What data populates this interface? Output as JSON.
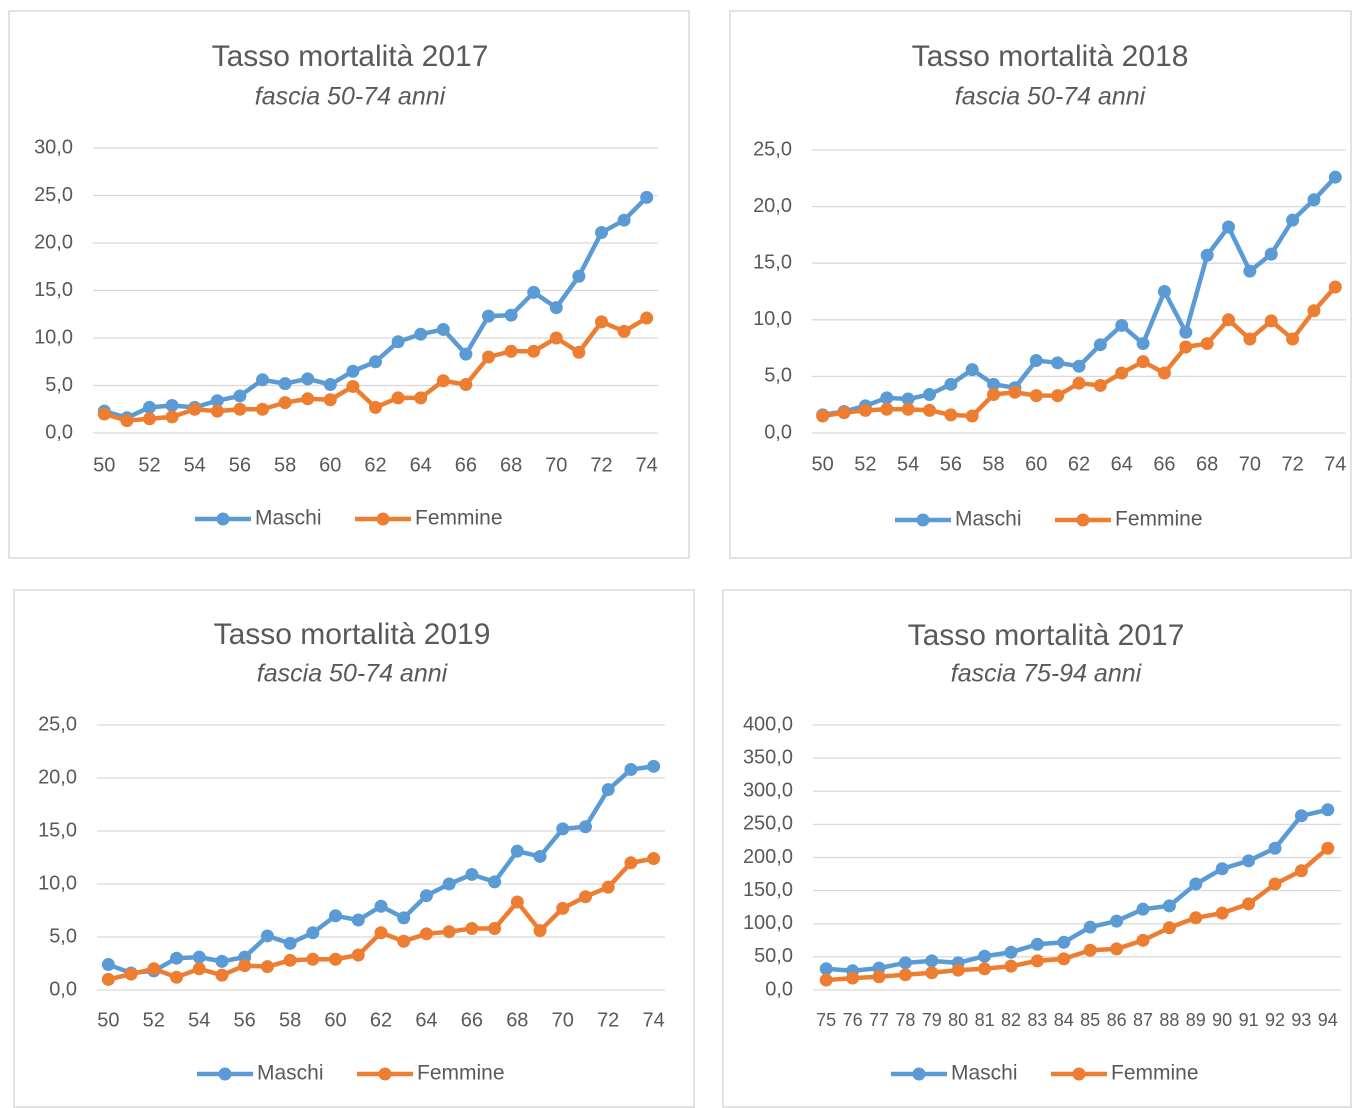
{
  "chart_data": [
    {
      "type": "line",
      "title": "Tasso mortalità 2017",
      "subtitle": "fascia 50-74 anni",
      "categories": [
        "50",
        null,
        "52",
        null,
        "54",
        null,
        "56",
        null,
        "58",
        null,
        "60",
        null,
        "62",
        null,
        "64",
        null,
        "66",
        null,
        "68",
        null,
        "70",
        null,
        "72",
        null,
        "74"
      ],
      "series": [
        {
          "name": "Maschi",
          "color": "#5b9bd5",
          "values": [
            2.3,
            1.6,
            2.7,
            2.9,
            2.7,
            3.4,
            3.9,
            5.6,
            5.2,
            5.7,
            5.1,
            6.5,
            7.5,
            9.6,
            10.4,
            10.9,
            8.3,
            12.3,
            12.4,
            14.8,
            13.2,
            16.5,
            21.1,
            22.4,
            24.8
          ]
        },
        {
          "name": "Femmine",
          "color": "#ed7d31",
          "values": [
            2.0,
            1.3,
            1.5,
            1.7,
            2.5,
            2.3,
            2.5,
            2.5,
            3.2,
            3.6,
            3.5,
            4.9,
            2.7,
            3.7,
            3.7,
            5.5,
            5.1,
            8.0,
            8.6,
            8.6,
            10.0,
            8.5,
            11.7,
            10.7,
            12.1
          ]
        }
      ],
      "ylim": [
        0,
        30
      ],
      "yticks": [
        {
          "value": 0,
          "label": "0,0"
        },
        {
          "value": 5,
          "label": "5,0"
        },
        {
          "value": 10,
          "label": "10,0"
        },
        {
          "value": 15,
          "label": "15,0"
        },
        {
          "value": 20,
          "label": "20,0"
        },
        {
          "value": 25,
          "label": "25,0"
        },
        {
          "value": 30,
          "label": "30,0"
        }
      ],
      "grid": true,
      "legend": "bottom"
    },
    {
      "type": "line",
      "title": "Tasso mortalità 2018",
      "subtitle": "fascia 50-74 anni",
      "categories": [
        "50",
        null,
        "52",
        null,
        "54",
        null,
        "56",
        null,
        "58",
        null,
        "60",
        null,
        "62",
        null,
        "64",
        null,
        "66",
        null,
        "68",
        null,
        "70",
        null,
        "72",
        null,
        "74"
      ],
      "series": [
        {
          "name": "Maschi",
          "color": "#5b9bd5",
          "values": [
            1.6,
            1.9,
            2.4,
            3.1,
            3.0,
            3.4,
            4.3,
            5.6,
            4.3,
            4.0,
            6.4,
            6.2,
            5.9,
            7.8,
            9.5,
            7.9,
            12.5,
            8.9,
            15.7,
            18.2,
            14.3,
            15.8,
            18.8,
            20.6,
            22.6
          ]
        },
        {
          "name": "Femmine",
          "color": "#ed7d31",
          "values": [
            1.5,
            1.8,
            2.0,
            2.1,
            2.1,
            2.0,
            1.6,
            1.5,
            3.4,
            3.6,
            3.3,
            3.3,
            4.4,
            4.2,
            5.3,
            6.3,
            5.3,
            7.6,
            7.9,
            10.0,
            8.3,
            9.9,
            8.3,
            10.8,
            12.9
          ]
        }
      ],
      "ylim": [
        0,
        25
      ],
      "yticks": [
        {
          "value": 0,
          "label": "0,0"
        },
        {
          "value": 5,
          "label": "5,0"
        },
        {
          "value": 10,
          "label": "10,0"
        },
        {
          "value": 15,
          "label": "15,0"
        },
        {
          "value": 20,
          "label": "20,0"
        },
        {
          "value": 25,
          "label": "25,0"
        }
      ],
      "grid": true,
      "legend": "bottom"
    },
    {
      "type": "line",
      "title": "Tasso mortalità 2019",
      "subtitle": "fascia 50-74 anni",
      "categories": [
        "50",
        null,
        "52",
        null,
        "54",
        null,
        "56",
        null,
        "58",
        null,
        "60",
        null,
        "62",
        null,
        "64",
        null,
        "66",
        null,
        "68",
        null,
        "70",
        null,
        "72",
        null,
        "74"
      ],
      "series": [
        {
          "name": "Maschi",
          "color": "#5b9bd5",
          "values": [
            2.4,
            1.6,
            1.8,
            3.0,
            3.1,
            2.7,
            3.1,
            5.1,
            4.4,
            5.4,
            7.0,
            6.6,
            7.9,
            6.8,
            8.9,
            10.0,
            10.9,
            10.2,
            13.1,
            12.6,
            15.2,
            15.4,
            18.9,
            20.8,
            21.1
          ]
        },
        {
          "name": "Femmine",
          "color": "#ed7d31",
          "values": [
            1.0,
            1.5,
            2.0,
            1.2,
            2.0,
            1.4,
            2.3,
            2.2,
            2.8,
            2.9,
            2.9,
            3.3,
            5.4,
            4.6,
            5.3,
            5.5,
            5.8,
            5.8,
            8.3,
            5.6,
            7.7,
            8.8,
            9.7,
            12.0,
            12.4
          ]
        }
      ],
      "ylim": [
        0,
        25
      ],
      "yticks": [
        {
          "value": 0,
          "label": "0,0"
        },
        {
          "value": 5,
          "label": "5,0"
        },
        {
          "value": 10,
          "label": "10,0"
        },
        {
          "value": 15,
          "label": "15,0"
        },
        {
          "value": 20,
          "label": "20,0"
        },
        {
          "value": 25,
          "label": "25,0"
        }
      ],
      "grid": true,
      "legend": "bottom"
    },
    {
      "type": "line",
      "title": "Tasso mortalità 2017",
      "subtitle": "fascia 75-94 anni",
      "categories": [
        "75",
        "76",
        "77",
        "78",
        "79",
        "80",
        "81",
        "82",
        "83",
        "84",
        "85",
        "86",
        "87",
        "88",
        "89",
        "90",
        "91",
        "92",
        "93",
        "94"
      ],
      "series": [
        {
          "name": "Maschi",
          "color": "#5b9bd5",
          "values": [
            32,
            29,
            33,
            41,
            44,
            41,
            51,
            57,
            69,
            72,
            95,
            104,
            122,
            127,
            160,
            183,
            195,
            214,
            263,
            272
          ]
        },
        {
          "name": "Femmine",
          "color": "#ed7d31",
          "values": [
            15,
            18,
            20,
            23,
            26,
            30,
            32,
            36,
            44,
            47,
            60,
            62,
            75,
            94,
            109,
            116,
            130,
            160,
            180,
            214
          ]
        }
      ],
      "ylim": [
        0,
        400
      ],
      "yticks": [
        {
          "value": 0,
          "label": "0,0"
        },
        {
          "value": 50,
          "label": "50,0"
        },
        {
          "value": 100,
          "label": "100,0"
        },
        {
          "value": 150,
          "label": "150,0"
        },
        {
          "value": 200,
          "label": "200,0"
        },
        {
          "value": 250,
          "label": "250,0"
        },
        {
          "value": 300,
          "label": "300,0"
        },
        {
          "value": 350,
          "label": "350,0"
        },
        {
          "value": 400,
          "label": "400,0"
        }
      ],
      "grid": true,
      "legend": "bottom"
    }
  ]
}
